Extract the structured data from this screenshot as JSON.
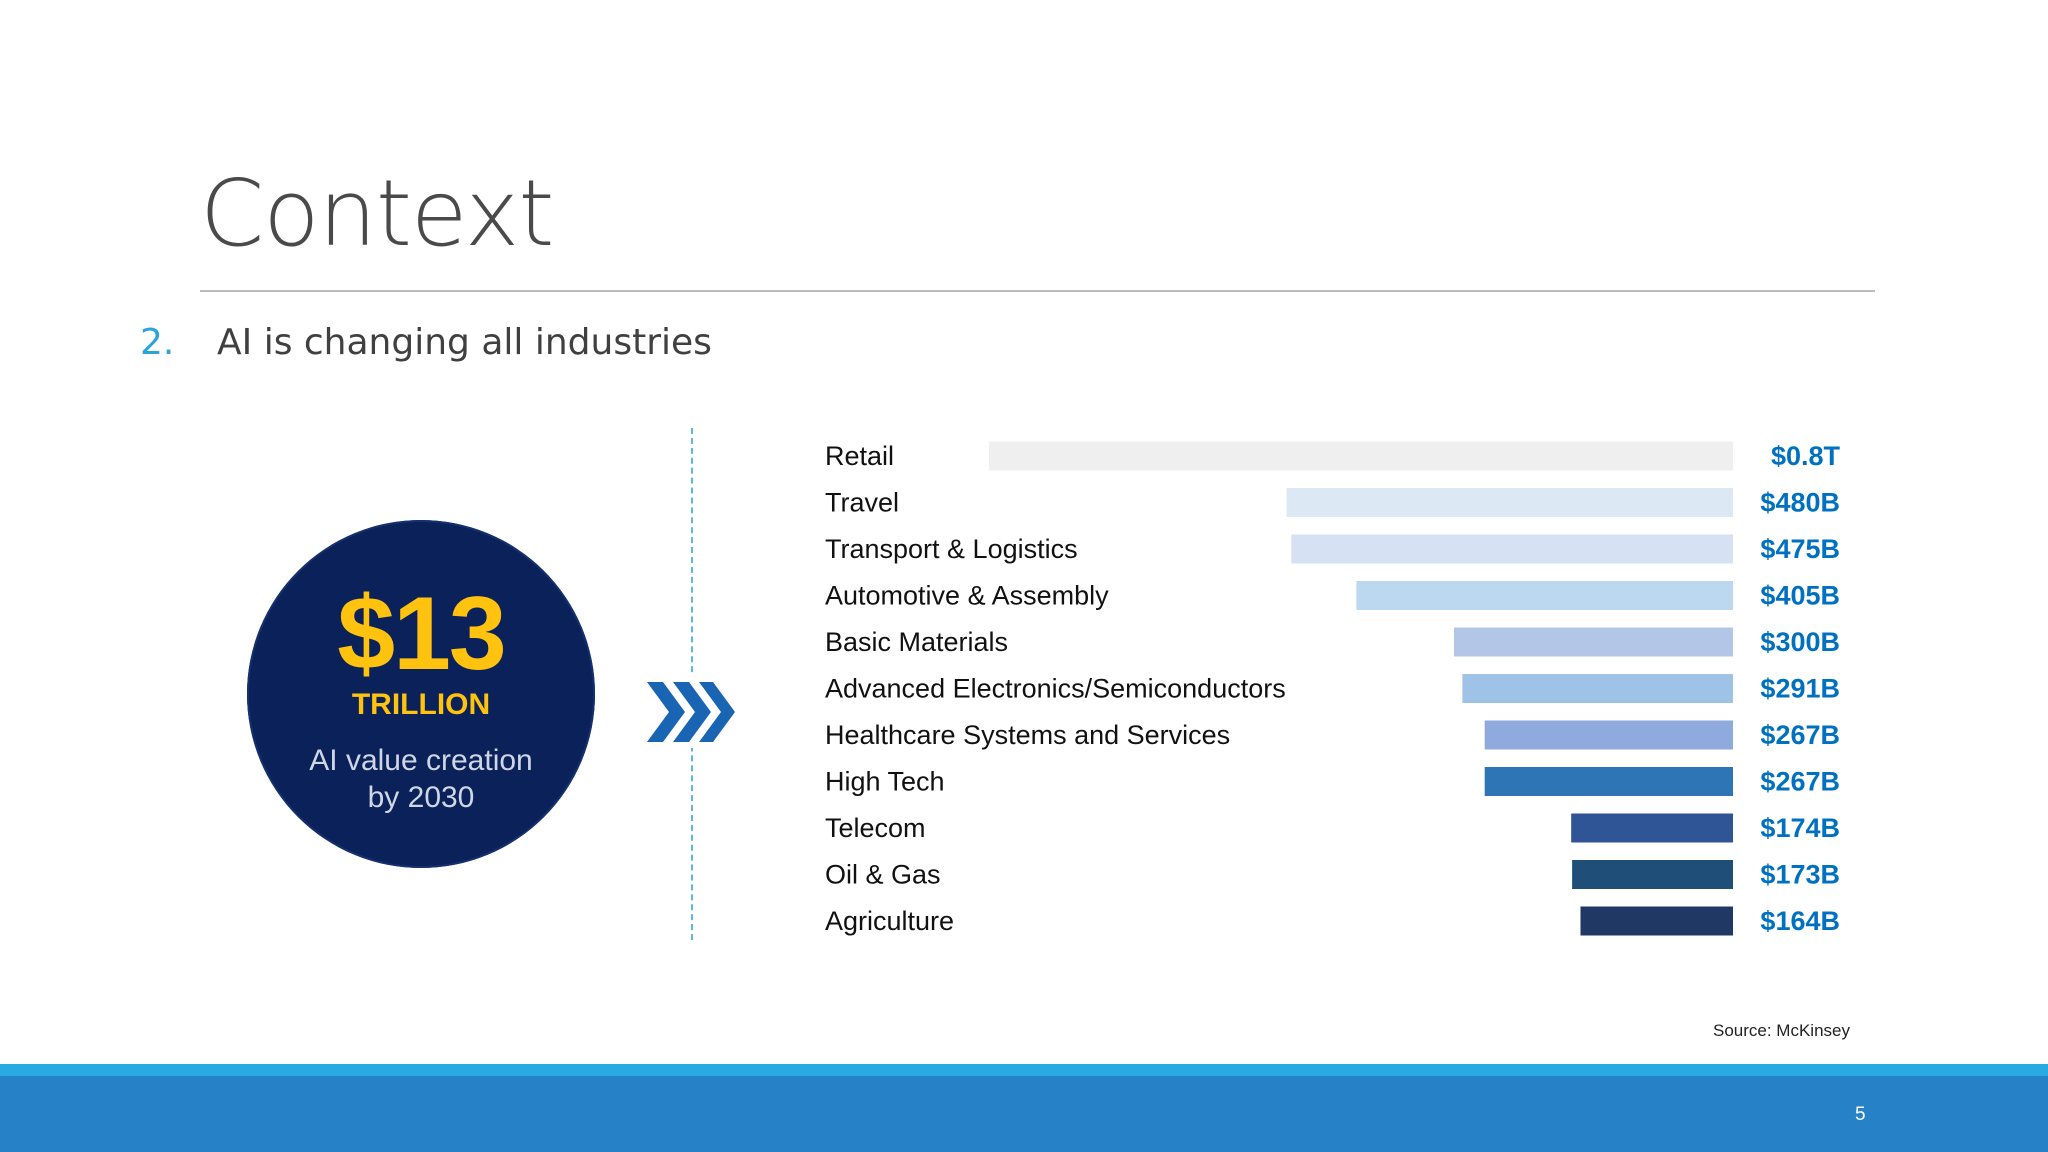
{
  "slide": {
    "title": "Context",
    "bullet_number": "2.",
    "bullet_text": "AI is changing all industries",
    "source": "Source: McKinsey",
    "page_number": "5"
  },
  "callout": {
    "amount": "$13",
    "unit": "TRILLION",
    "caption_line1": "AI value creation",
    "caption_line2": "by 2030"
  },
  "chart_data": {
    "type": "bar",
    "orientation": "horizontal",
    "unit": "USD billions",
    "categories": [
      "Retail",
      "Travel",
      "Transport & Logistics",
      "Automotive & Assembly",
      "Basic Materials",
      "Advanced Electronics/Semiconductors",
      "Healthcare Systems and Services",
      "High Tech",
      "Telecom",
      "Oil & Gas",
      "Agriculture"
    ],
    "values": [
      800,
      480,
      475,
      405,
      300,
      291,
      267,
      267,
      174,
      173,
      164
    ],
    "labels": [
      "$0.8T",
      "$480B",
      "$475B",
      "$405B",
      "$300B",
      "$291B",
      "$267B",
      "$267B",
      "$174B",
      "$173B",
      "$164B"
    ],
    "colors": [
      "#efefef",
      "#dce9f5",
      "#d6e2f3",
      "#bcd7f0",
      "#b4c6e8",
      "#9ec3e6",
      "#8faadc",
      "#2e75b6",
      "#2f5597",
      "#1f4e79",
      "#203864"
    ],
    "label_color": "#0070c0",
    "xlim": [
      0,
      800
    ],
    "grid": false,
    "legend": "none"
  }
}
